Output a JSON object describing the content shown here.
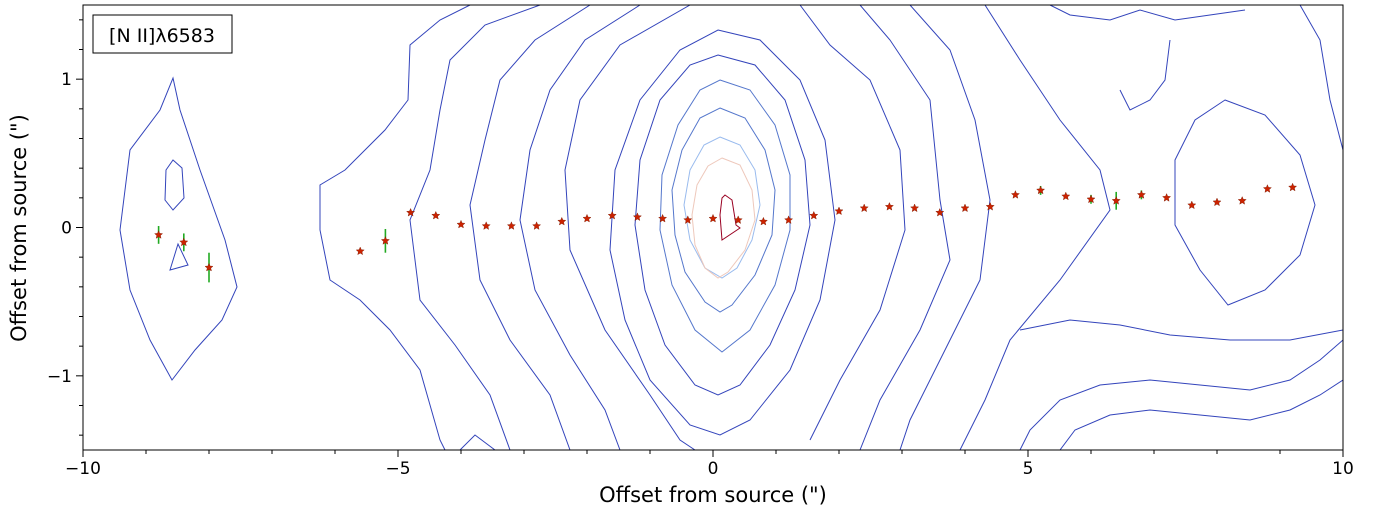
{
  "chart_data": {
    "type": "scatter",
    "legend_label": "[N II]λ6583",
    "xlabel": "Offset from source (\")",
    "ylabel": "Offset from source (\")",
    "xlim": [
      -10,
      10
    ],
    "ylim": [
      -1.5,
      1.5
    ],
    "xticks": [
      {
        "v": -10,
        "label": "−10"
      },
      {
        "v": -5,
        "label": "−5"
      },
      {
        "v": 0,
        "label": "0"
      },
      {
        "v": 5,
        "label": "5"
      },
      {
        "v": 10,
        "label": "10"
      }
    ],
    "yticks": [
      {
        "v": -1,
        "label": "−1"
      },
      {
        "v": 0,
        "label": "0"
      },
      {
        "v": 1,
        "label": "1"
      }
    ],
    "marker_color": "#cc2200",
    "errorbar_color": "#22aa22",
    "contour_colors": {
      "outer": "#3344bb",
      "mid": "#5577cc",
      "inner": "#99bbee",
      "core": "#eec8bb",
      "peak": "#990022"
    },
    "points": [
      {
        "x": -8.8,
        "y": -0.05,
        "err": 0.06
      },
      {
        "x": -8.4,
        "y": -0.1,
        "err": 0.06
      },
      {
        "x": -8.0,
        "y": -0.27,
        "err": 0.1
      },
      {
        "x": -5.6,
        "y": -0.16,
        "err": 0.0
      },
      {
        "x": -5.2,
        "y": -0.09,
        "err": 0.08
      },
      {
        "x": -4.8,
        "y": 0.1,
        "err": 0.0
      },
      {
        "x": -4.4,
        "y": 0.08,
        "err": 0.0
      },
      {
        "x": -4.0,
        "y": 0.02,
        "err": 0.0
      },
      {
        "x": -3.6,
        "y": 0.01,
        "err": 0.0
      },
      {
        "x": -3.2,
        "y": 0.01,
        "err": 0.0
      },
      {
        "x": -2.8,
        "y": 0.01,
        "err": 0.0
      },
      {
        "x": -2.4,
        "y": 0.04,
        "err": 0.0
      },
      {
        "x": -2.0,
        "y": 0.06,
        "err": 0.0
      },
      {
        "x": -1.6,
        "y": 0.08,
        "err": 0.0
      },
      {
        "x": -1.2,
        "y": 0.07,
        "err": 0.0
      },
      {
        "x": -0.8,
        "y": 0.06,
        "err": 0.0
      },
      {
        "x": -0.4,
        "y": 0.05,
        "err": 0.0
      },
      {
        "x": 0.0,
        "y": 0.06,
        "err": 0.0
      },
      {
        "x": 0.4,
        "y": 0.05,
        "err": 0.0
      },
      {
        "x": 0.8,
        "y": 0.04,
        "err": 0.0
      },
      {
        "x": 1.2,
        "y": 0.05,
        "err": 0.0
      },
      {
        "x": 1.6,
        "y": 0.08,
        "err": 0.0
      },
      {
        "x": 2.0,
        "y": 0.11,
        "err": 0.0
      },
      {
        "x": 2.4,
        "y": 0.13,
        "err": 0.0
      },
      {
        "x": 2.8,
        "y": 0.14,
        "err": 0.0
      },
      {
        "x": 3.2,
        "y": 0.13,
        "err": 0.0
      },
      {
        "x": 3.6,
        "y": 0.1,
        "err": 0.0
      },
      {
        "x": 4.0,
        "y": 0.13,
        "err": 0.0
      },
      {
        "x": 4.4,
        "y": 0.14,
        "err": 0.0
      },
      {
        "x": 4.8,
        "y": 0.22,
        "err": 0.0
      },
      {
        "x": 5.2,
        "y": 0.25,
        "err": 0.03
      },
      {
        "x": 5.6,
        "y": 0.21,
        "err": 0.0
      },
      {
        "x": 6.0,
        "y": 0.19,
        "err": 0.03
      },
      {
        "x": 6.4,
        "y": 0.18,
        "err": 0.06
      },
      {
        "x": 6.8,
        "y": 0.22,
        "err": 0.03
      },
      {
        "x": 7.2,
        "y": 0.2,
        "err": 0.0
      },
      {
        "x": 7.6,
        "y": 0.15,
        "err": 0.0
      },
      {
        "x": 8.0,
        "y": 0.17,
        "err": 0.0
      },
      {
        "x": 8.4,
        "y": 0.18,
        "err": 0.0
      },
      {
        "x": 8.8,
        "y": 0.26,
        "err": 0.0
      },
      {
        "x": 9.2,
        "y": 0.27,
        "err": 0.0
      }
    ]
  }
}
